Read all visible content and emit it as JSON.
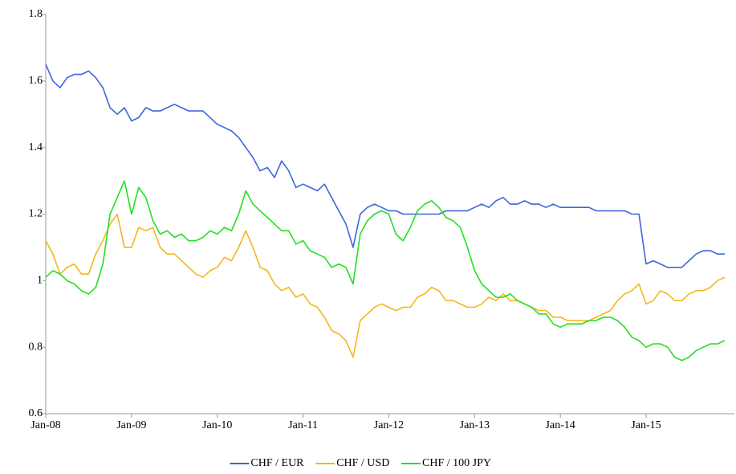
{
  "chart_data": {
    "type": "line",
    "categories": [
      "Jan-08",
      null,
      null,
      null,
      null,
      null,
      null,
      null,
      null,
      null,
      null,
      null,
      "Jan-09",
      null,
      null,
      null,
      null,
      null,
      null,
      null,
      null,
      null,
      null,
      null,
      "Jan-10",
      null,
      null,
      null,
      null,
      null,
      null,
      null,
      null,
      null,
      null,
      null,
      "Jan-11",
      null,
      null,
      null,
      null,
      null,
      null,
      null,
      null,
      null,
      null,
      null,
      "Jan-12",
      null,
      null,
      null,
      null,
      null,
      null,
      null,
      null,
      null,
      null,
      null,
      "Jan-13",
      null,
      null,
      null,
      null,
      null,
      null,
      null,
      null,
      null,
      null,
      null,
      "Jan-14",
      null,
      null,
      null,
      null,
      null,
      null,
      null,
      null,
      null,
      null,
      null,
      "Jan-15",
      null,
      null,
      null,
      null,
      null,
      null,
      null,
      null,
      null,
      null,
      null
    ],
    "series": [
      {
        "name": "CHF / EUR",
        "color": "#3b66dc",
        "values": [
          1.65,
          1.6,
          1.58,
          1.61,
          1.62,
          1.62,
          1.63,
          1.61,
          1.58,
          1.52,
          1.5,
          1.52,
          1.48,
          1.49,
          1.52,
          1.51,
          1.51,
          1.52,
          1.53,
          1.52,
          1.51,
          1.51,
          1.51,
          1.49,
          1.47,
          1.46,
          1.45,
          1.43,
          1.4,
          1.37,
          1.33,
          1.34,
          1.31,
          1.36,
          1.33,
          1.28,
          1.29,
          1.28,
          1.27,
          1.29,
          1.25,
          1.21,
          1.17,
          1.1,
          1.2,
          1.22,
          1.23,
          1.22,
          1.21,
          1.21,
          1.2,
          1.2,
          1.2,
          1.2,
          1.2,
          1.2,
          1.21,
          1.21,
          1.21,
          1.21,
          1.22,
          1.23,
          1.22,
          1.24,
          1.25,
          1.23,
          1.23,
          1.24,
          1.23,
          1.23,
          1.22,
          1.23,
          1.22,
          1.22,
          1.22,
          1.22,
          1.22,
          1.21,
          1.21,
          1.21,
          1.21,
          1.21,
          1.2,
          1.2,
          1.05,
          1.06,
          1.05,
          1.04,
          1.04,
          1.04,
          1.06,
          1.08,
          1.09,
          1.09,
          1.08,
          1.08
        ]
      },
      {
        "name": "CHF / USD",
        "color": "#f5b51c",
        "values": [
          1.12,
          1.08,
          1.02,
          1.04,
          1.05,
          1.02,
          1.02,
          1.08,
          1.12,
          1.17,
          1.2,
          1.1,
          1.1,
          1.16,
          1.15,
          1.16,
          1.1,
          1.08,
          1.08,
          1.06,
          1.04,
          1.02,
          1.01,
          1.03,
          1.04,
          1.07,
          1.06,
          1.1,
          1.15,
          1.1,
          1.04,
          1.03,
          0.99,
          0.97,
          0.98,
          0.95,
          0.96,
          0.93,
          0.92,
          0.89,
          0.85,
          0.84,
          0.82,
          0.77,
          0.88,
          0.9,
          0.92,
          0.93,
          0.92,
          0.91,
          0.92,
          0.92,
          0.95,
          0.96,
          0.98,
          0.97,
          0.94,
          0.94,
          0.93,
          0.92,
          0.92,
          0.93,
          0.95,
          0.94,
          0.96,
          0.94,
          0.94,
          0.93,
          0.92,
          0.91,
          0.91,
          0.89,
          0.89,
          0.88,
          0.88,
          0.88,
          0.88,
          0.89,
          0.9,
          0.91,
          0.94,
          0.96,
          0.97,
          0.99,
          0.93,
          0.94,
          0.97,
          0.96,
          0.94,
          0.94,
          0.96,
          0.97,
          0.97,
          0.98,
          1.0,
          1.01
        ]
      },
      {
        "name": "CHF / 100 JPY",
        "color": "#22e022",
        "values": [
          1.01,
          1.03,
          1.02,
          1.0,
          0.99,
          0.97,
          0.96,
          0.98,
          1.05,
          1.2,
          1.25,
          1.3,
          1.2,
          1.28,
          1.25,
          1.18,
          1.14,
          1.15,
          1.13,
          1.14,
          1.12,
          1.12,
          1.13,
          1.15,
          1.14,
          1.16,
          1.15,
          1.2,
          1.27,
          1.23,
          1.21,
          1.19,
          1.17,
          1.15,
          1.15,
          1.11,
          1.12,
          1.09,
          1.08,
          1.07,
          1.04,
          1.05,
          1.04,
          0.99,
          1.14,
          1.18,
          1.2,
          1.21,
          1.2,
          1.14,
          1.12,
          1.16,
          1.21,
          1.23,
          1.24,
          1.22,
          1.19,
          1.18,
          1.16,
          1.1,
          1.03,
          0.99,
          0.97,
          0.95,
          0.95,
          0.96,
          0.94,
          0.93,
          0.92,
          0.9,
          0.9,
          0.87,
          0.86,
          0.87,
          0.87,
          0.87,
          0.88,
          0.88,
          0.89,
          0.89,
          0.88,
          0.86,
          0.83,
          0.82,
          0.8,
          0.81,
          0.81,
          0.8,
          0.77,
          0.76,
          0.77,
          0.79,
          0.8,
          0.81,
          0.81,
          0.82
        ]
      }
    ],
    "ylim": [
      0.6,
      1.8
    ],
    "yticks": [
      0.6,
      0.8,
      1,
      1.2,
      1.4,
      1.6,
      1.8
    ],
    "grid": false,
    "legend": "bottom"
  }
}
